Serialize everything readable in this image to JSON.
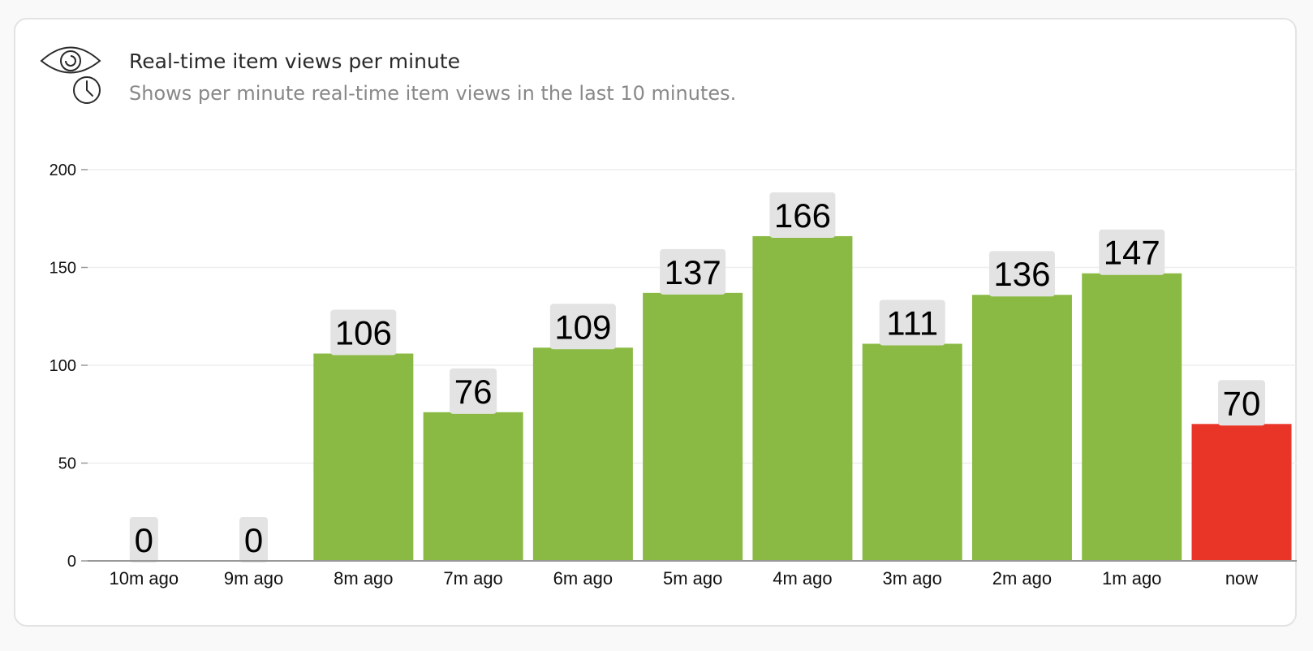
{
  "card": {
    "title": "Real-time item views per minute",
    "subtitle": "Shows per minute real-time item views in the last 10 minutes.",
    "icon": "eye-clock-icon"
  },
  "colors": {
    "bar_default": "#8aba43",
    "bar_current": "#e93527",
    "label_bg": "#e3e3e3",
    "gridline": "#eeeeee",
    "axis": "#999999"
  },
  "chart_data": {
    "type": "bar",
    "title": "Real-time item views per minute",
    "subtitle": "Shows per minute real-time item views in the last 10 minutes.",
    "categories": [
      "10m ago",
      "9m ago",
      "8m ago",
      "7m ago",
      "6m ago",
      "5m ago",
      "4m ago",
      "3m ago",
      "2m ago",
      "1m ago",
      "now"
    ],
    "values": [
      0,
      0,
      106,
      76,
      109,
      137,
      166,
      111,
      136,
      147,
      70
    ],
    "highlighted_category": "now",
    "xlabel": "",
    "ylabel": "",
    "ylim": [
      0,
      200
    ],
    "yticks": [
      0,
      50,
      100,
      150,
      200
    ],
    "grid": true,
    "data_labels": true,
    "legend": "none"
  }
}
